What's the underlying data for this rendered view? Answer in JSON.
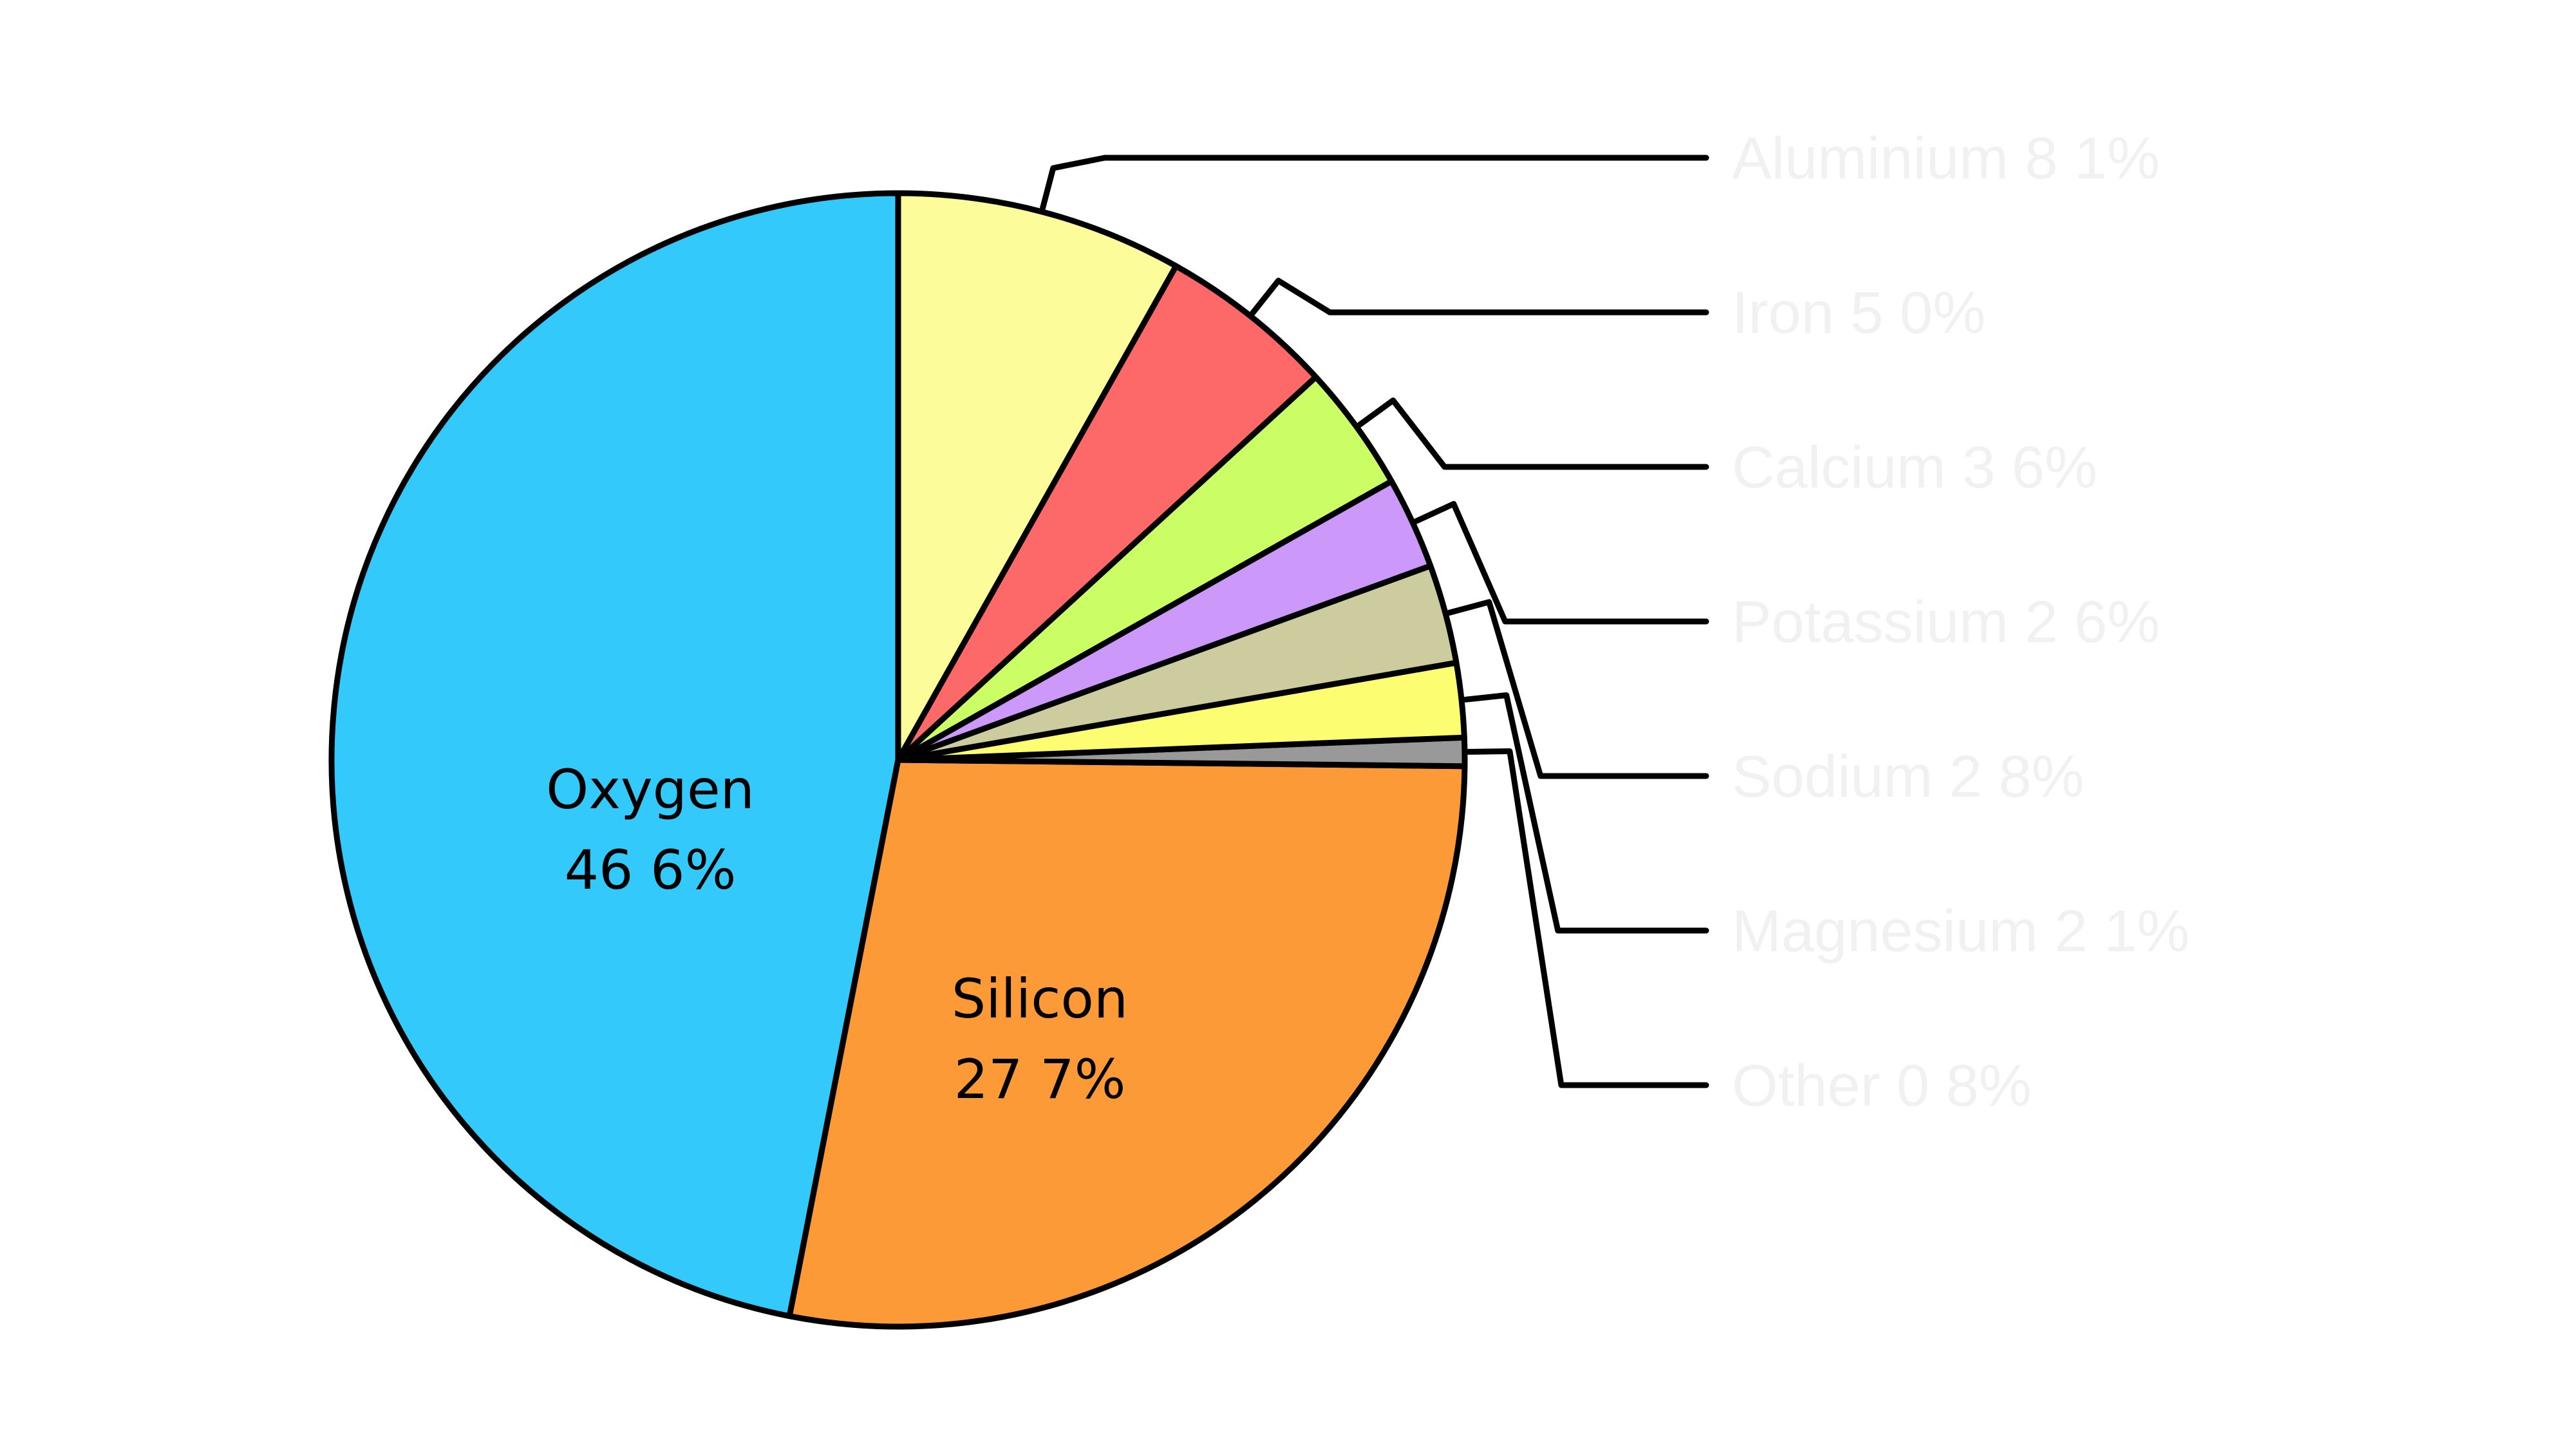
{
  "chart_data": {
    "type": "pie",
    "title": "",
    "slices": [
      {
        "name": "Oxygen",
        "value": 46.6,
        "color": "#33c9fb",
        "label_lines": [
          "Oxygen",
          "46 6%"
        ],
        "legend_text": ""
      },
      {
        "name": "Silicon",
        "value": 27.7,
        "color": "#fb9a36",
        "label_lines": [
          "Silicon",
          "27 7%"
        ],
        "legend_text": ""
      },
      {
        "name": "Other",
        "value": 0.8,
        "color": "#999999",
        "label_lines": [],
        "legend_text": "Other 0 8%"
      },
      {
        "name": "Magnesium",
        "value": 2.1,
        "color": "#fdfd72",
        "label_lines": [],
        "legend_text": "Magnesium 2 1%"
      },
      {
        "name": "Sodium",
        "value": 2.8,
        "color": "#cccc9e",
        "label_lines": [],
        "legend_text": "Sodium 2 8%"
      },
      {
        "name": "Potassium",
        "value": 2.6,
        "color": "#cc99fb",
        "label_lines": [],
        "legend_text": "Potassium 2 6%"
      },
      {
        "name": "Calcium",
        "value": 3.6,
        "color": "#cbfd65",
        "label_lines": [],
        "legend_text": "Calcium 3 6%"
      },
      {
        "name": "Iron",
        "value": 5.0,
        "color": "#fd6868",
        "label_lines": [],
        "legend_text": "Iron 5 0%"
      },
      {
        "name": "Aluminium",
        "value": 8.1,
        "color": "#fcfc9a",
        "label_lines": [],
        "legend_text": "Aluminium 8 1%"
      }
    ],
    "legend": [
      "Aluminium 8 1%",
      "Iron 5 0%",
      "Calcium 3 6%",
      "Potassium 2 6%",
      "Sodium 2 8%",
      "Magnesium 2 1%",
      "Other 0 8%"
    ],
    "legend_placement": "right",
    "start_angle": "12 o'clock",
    "direction": "counterclockwise"
  }
}
